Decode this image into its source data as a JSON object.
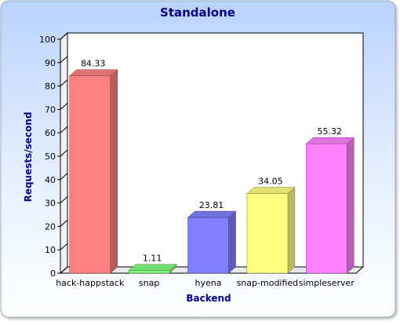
{
  "chart_data": {
    "type": "bar",
    "title": "Standalone",
    "xlabel": "Backend",
    "ylabel": "Requests/second",
    "categories": [
      "hack-happstack",
      "snap",
      "hyena",
      "snap-modified",
      "simpleserver"
    ],
    "values": [
      84.33,
      1.11,
      23.81,
      34.05,
      55.32
    ],
    "value_labels": [
      "84.33",
      "1.11",
      "23.81",
      "34.05",
      "55.32"
    ],
    "ylim": [
      0,
      100
    ],
    "yticks": [
      0,
      10,
      20,
      30,
      40,
      50,
      60,
      70,
      80,
      90,
      100
    ],
    "grid": false,
    "bar_style": "3d",
    "colors": [
      "#ff8080",
      "#80ff80",
      "#8080ff",
      "#ffff80",
      "#ff80ff"
    ]
  }
}
